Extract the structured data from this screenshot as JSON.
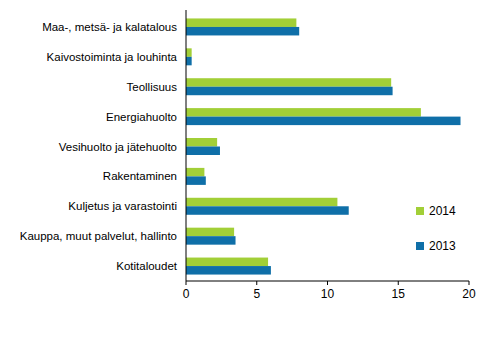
{
  "chart_data": {
    "type": "bar",
    "orientation": "horizontal",
    "legend": "right",
    "grid": false,
    "categories": [
      "Maa-, metsä- ja kalatalous",
      "Kaivostoiminta ja louhinta",
      "Teollisuus",
      "Energiahuolto",
      "Vesihuolto ja jätehuolto",
      "Rakentaminen",
      "Kuljetus ja varastointi",
      "Kauppa, muut palvelut, hallinto",
      "Kotitaloudet"
    ],
    "series": [
      {
        "name": "2014",
        "color": "#a2cf37",
        "values": [
          7.8,
          0.4,
          14.5,
          16.6,
          2.2,
          1.3,
          10.7,
          3.4,
          5.8
        ]
      },
      {
        "name": "2013",
        "color": "#0f6fa8",
        "values": [
          8.0,
          0.4,
          14.6,
          19.4,
          2.4,
          1.4,
          11.5,
          3.5,
          6.0
        ]
      }
    ],
    "xlim": [
      0,
      20
    ],
    "xticks": [
      0,
      5,
      10,
      15,
      20
    ]
  }
}
